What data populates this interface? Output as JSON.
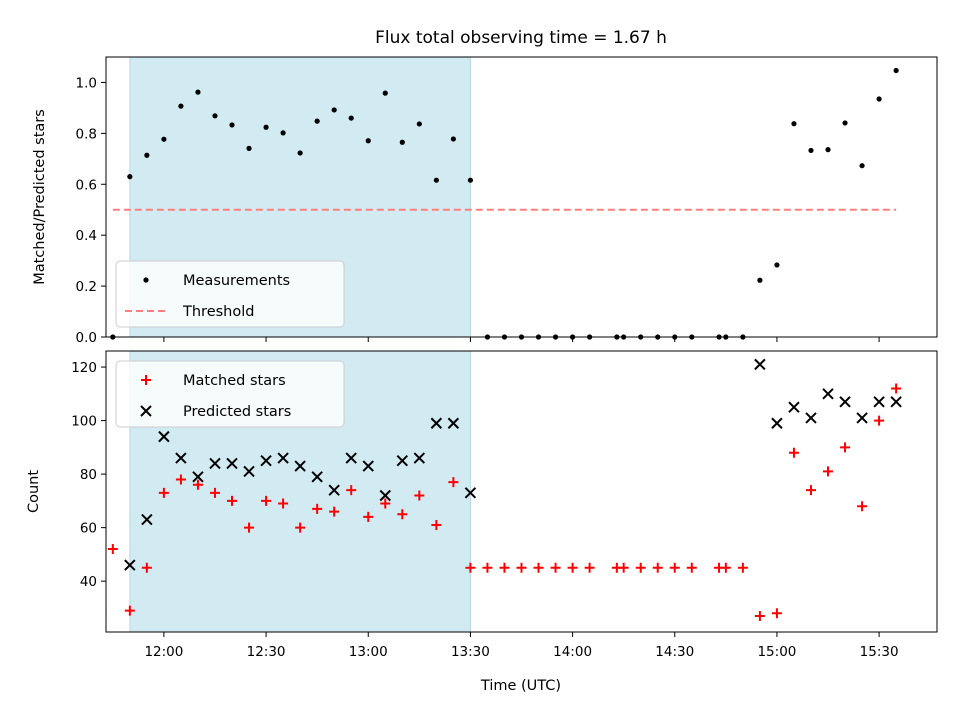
{
  "chart_data": {
    "title": "Flux total observing time = 1.67 h",
    "xlabel": "Time (UTC)",
    "x_ticks": [
      "12:00",
      "12:30",
      "13:00",
      "13:30",
      "14:00",
      "14:30",
      "15:00",
      "15:30"
    ],
    "xlim": [
      "11:43",
      "15:47"
    ],
    "shaded_span": [
      "11:50",
      "13:30"
    ],
    "shade_color": "#add8e6",
    "panels": [
      {
        "type": "scatter",
        "ylabel": "Matched/Predicted stars",
        "ylim": [
          0,
          1.1
        ],
        "y_ticks": [
          "0.0",
          "0.2",
          "0.4",
          "0.6",
          "0.8",
          "1.0"
        ],
        "legend_position": "lower-left",
        "series": [
          {
            "name": "Measurements",
            "marker": "dot",
            "color": "#000000",
            "points": [
              [
                "11:45",
                0.0
              ],
              [
                "11:50",
                0.63
              ],
              [
                "11:55",
                0.714
              ],
              [
                "12:00",
                0.777
              ],
              [
                "12:05",
                0.907
              ],
              [
                "12:10",
                0.962
              ],
              [
                "12:15",
                0.869
              ],
              [
                "12:20",
                0.833
              ],
              [
                "12:25",
                0.741
              ],
              [
                "12:30",
                0.824
              ],
              [
                "12:35",
                0.802
              ],
              [
                "12:40",
                0.723
              ],
              [
                "12:45",
                0.848
              ],
              [
                "12:50",
                0.892
              ],
              [
                "12:55",
                0.86
              ],
              [
                "13:00",
                0.771
              ],
              [
                "13:05",
                0.958
              ],
              [
                "13:10",
                0.765
              ],
              [
                "13:15",
                0.837
              ],
              [
                "13:20",
                0.616
              ],
              [
                "13:25",
                0.778
              ],
              [
                "13:30",
                0.616
              ],
              [
                "13:35",
                0.0
              ],
              [
                "13:40",
                0.0
              ],
              [
                "13:45",
                0.0
              ],
              [
                "13:50",
                0.0
              ],
              [
                "13:55",
                0.0
              ],
              [
                "14:00",
                0.0
              ],
              [
                "14:05",
                0.0
              ],
              [
                "14:13",
                0.0
              ],
              [
                "14:15",
                0.0
              ],
              [
                "14:20",
                0.0
              ],
              [
                "14:25",
                0.0
              ],
              [
                "14:30",
                0.0
              ],
              [
                "14:35",
                0.0
              ],
              [
                "14:43",
                0.0
              ],
              [
                "14:45",
                0.0
              ],
              [
                "14:50",
                0.0
              ],
              [
                "14:55",
                0.223
              ],
              [
                "15:00",
                0.283
              ],
              [
                "15:05",
                0.838
              ],
              [
                "15:10",
                0.733
              ],
              [
                "15:15",
                0.736
              ],
              [
                "15:20",
                0.841
              ],
              [
                "15:25",
                0.673
              ],
              [
                "15:30",
                0.935
              ],
              [
                "15:35",
                1.047
              ]
            ]
          },
          {
            "name": "Threshold",
            "marker": "dashed-line",
            "color": "#ff7f7f",
            "x_range": [
              "11:45",
              "15:35"
            ],
            "value": 0.5
          }
        ]
      },
      {
        "type": "scatter",
        "ylabel": "Count",
        "ylim": [
          21,
          126
        ],
        "y_ticks": [
          "40",
          "60",
          "80",
          "100",
          "120"
        ],
        "legend_position": "upper-left",
        "series": [
          {
            "name": "Matched stars",
            "marker": "plus",
            "color": "#ff0000",
            "points": [
              [
                "11:45",
                52
              ],
              [
                "11:50",
                29
              ],
              [
                "11:55",
                45
              ],
              [
                "12:00",
                73
              ],
              [
                "12:05",
                78
              ],
              [
                "12:10",
                76
              ],
              [
                "12:15",
                73
              ],
              [
                "12:20",
                70
              ],
              [
                "12:25",
                60
              ],
              [
                "12:30",
                70
              ],
              [
                "12:35",
                69
              ],
              [
                "12:40",
                60
              ],
              [
                "12:45",
                67
              ],
              [
                "12:50",
                66
              ],
              [
                "12:55",
                74
              ],
              [
                "13:00",
                64
              ],
              [
                "13:05",
                69
              ],
              [
                "13:10",
                65
              ],
              [
                "13:15",
                72
              ],
              [
                "13:20",
                61
              ],
              [
                "13:25",
                77
              ],
              [
                "13:30",
                45
              ],
              [
                "13:35",
                45
              ],
              [
                "13:40",
                45
              ],
              [
                "13:45",
                45
              ],
              [
                "13:50",
                45
              ],
              [
                "13:55",
                45
              ],
              [
                "14:00",
                45
              ],
              [
                "14:05",
                45
              ],
              [
                "14:13",
                45
              ],
              [
                "14:15",
                45
              ],
              [
                "14:20",
                45
              ],
              [
                "14:25",
                45
              ],
              [
                "14:30",
                45
              ],
              [
                "14:35",
                45
              ],
              [
                "14:43",
                45
              ],
              [
                "14:45",
                45
              ],
              [
                "14:50",
                45
              ],
              [
                "14:55",
                27
              ],
              [
                "15:00",
                28
              ],
              [
                "15:05",
                88
              ],
              [
                "15:10",
                74
              ],
              [
                "15:15",
                81
              ],
              [
                "15:20",
                90
              ],
              [
                "15:25",
                68
              ],
              [
                "15:30",
                100
              ],
              [
                "15:35",
                112
              ]
            ]
          },
          {
            "name": "Predicted stars",
            "marker": "x",
            "color": "#000000",
            "points": [
              [
                "11:50",
                46
              ],
              [
                "11:55",
                63
              ],
              [
                "12:00",
                94
              ],
              [
                "12:05",
                86
              ],
              [
                "12:10",
                79
              ],
              [
                "12:15",
                84
              ],
              [
                "12:20",
                84
              ],
              [
                "12:25",
                81
              ],
              [
                "12:30",
                85
              ],
              [
                "12:35",
                86
              ],
              [
                "12:40",
                83
              ],
              [
                "12:45",
                79
              ],
              [
                "12:50",
                74
              ],
              [
                "12:55",
                86
              ],
              [
                "13:00",
                83
              ],
              [
                "13:05",
                72
              ],
              [
                "13:10",
                85
              ],
              [
                "13:15",
                86
              ],
              [
                "13:20",
                99
              ],
              [
                "13:25",
                99
              ],
              [
                "13:30",
                73
              ],
              [
                "14:55",
                121
              ],
              [
                "15:00",
                99
              ],
              [
                "15:05",
                105
              ],
              [
                "15:10",
                101
              ],
              [
                "15:15",
                110
              ],
              [
                "15:20",
                107
              ],
              [
                "15:25",
                101
              ],
              [
                "15:30",
                107
              ],
              [
                "15:35",
                107
              ]
            ]
          }
        ]
      }
    ]
  }
}
